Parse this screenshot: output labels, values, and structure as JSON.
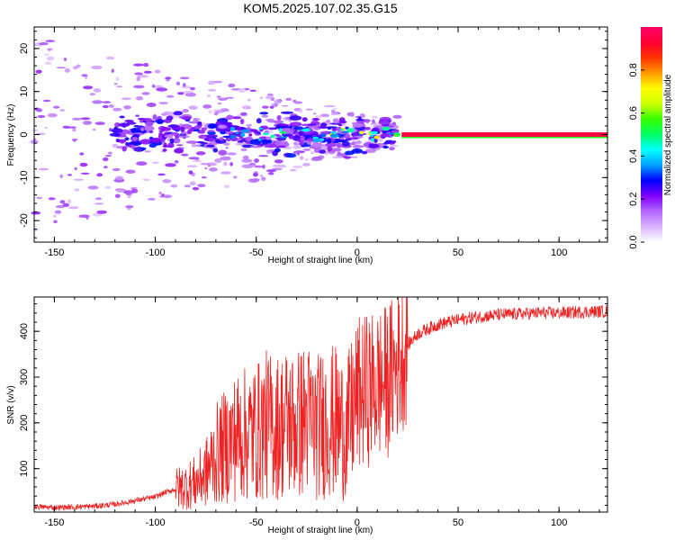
{
  "title": "KOM5.2025.107.02.35.G15",
  "chart_data": [
    {
      "type": "heatmap",
      "xlabel": "Height of straight line (km)",
      "ylabel": "Frequency (Hz)",
      "xlim": [
        -160,
        124
      ],
      "ylim": [
        -25,
        25
      ],
      "xticks": [
        -150,
        -100,
        -50,
        0,
        50,
        100
      ],
      "yticks": [
        -20,
        -10,
        0,
        10,
        20
      ],
      "colorbar": {
        "label": "Normalized spectral amplitude",
        "range": [
          0,
          1
        ],
        "ticks": [
          "0.0",
          "0.2",
          "0.4",
          "0.6",
          "0.8"
        ],
        "colormap": [
          "#ffffff",
          "#d9b3ff",
          "#b366ff",
          "#8000ff",
          "#0000ff",
          "#00a0ff",
          "#00ffff",
          "#00ff66",
          "#33ff00",
          "#ccff00",
          "#ffff00",
          "#ff9900",
          "#ff3300",
          "#ff0033",
          "#ff0066"
        ]
      },
      "description_values": {
        "carrier_band_start_km": 22,
        "carrier_frequency_hz": 0,
        "carrier_amplitude": 0.95,
        "noise_region_km": [
          -160,
          20
        ],
        "noise_amplitude_range": [
          0.05,
          0.4
        ]
      }
    },
    {
      "type": "line",
      "xlabel": "Height of straight line (km)",
      "ylabel": "SNR (v/v)",
      "xlim": [
        -160,
        124
      ],
      "ylim": [
        5,
        475
      ],
      "xticks": [
        -150,
        -100,
        -50,
        0,
        50,
        100
      ],
      "yticks": [
        100,
        200,
        300,
        400
      ],
      "color": "#ee2222",
      "series": [
        {
          "x": [
            -160,
            -150,
            -140,
            -130,
            -120,
            -110,
            -100,
            -95,
            -90,
            -85,
            -80,
            -75,
            -70,
            -65,
            -60,
            -55,
            -50,
            -45,
            -40,
            -35,
            -30,
            -25,
            -20,
            -15,
            -10,
            -5,
            0,
            5,
            10,
            15,
            20,
            25,
            30,
            35,
            40,
            50,
            60,
            70,
            80,
            90,
            100,
            110,
            124
          ],
          "values": [
            17,
            15,
            16,
            18,
            22,
            30,
            38,
            48,
            55,
            62,
            70,
            90,
            130,
            150,
            170,
            175,
            180,
            195,
            190,
            200,
            195,
            210,
            190,
            205,
            200,
            180,
            260,
            270,
            285,
            290,
            330,
            370,
            395,
            405,
            415,
            425,
            432,
            436,
            438,
            440,
            440,
            442,
            444
          ]
        }
      ]
    }
  ]
}
